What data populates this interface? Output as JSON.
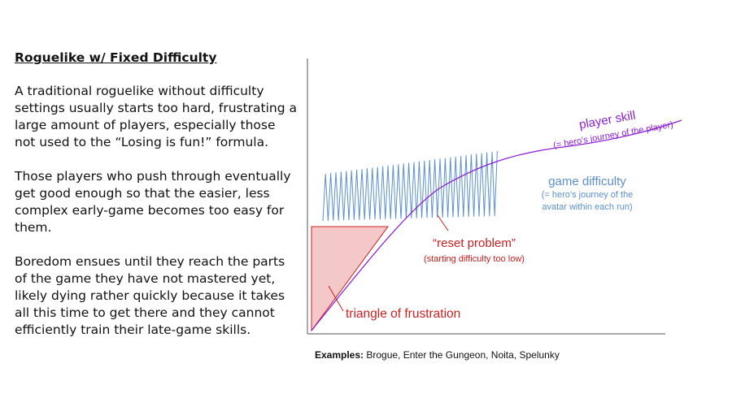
{
  "slide": {
    "title": "Roguelike w/ Fixed Difficulty",
    "paragraphs": [
      "A traditional roguelike without difficulty settings usually starts too hard, frustrating a large amount of players, especially those not used to the “Losing is fun!” formula.",
      "Those players who push through eventually get good enough so that the easier, less complex early-game becomes too easy for them.",
      "Boredom ensues until they reach the parts of the game they have not mastered yet, likely dying rather quickly because it takes all this time to get there and they cannot efficiently train their late-game skills."
    ]
  },
  "diagram": {
    "player_skill_label": "player skill",
    "player_skill_sub": "(= hero’s journey of the player)",
    "game_difficulty_label": "game difficulty",
    "game_difficulty_sub1": "(= hero’s journey of the",
    "game_difficulty_sub2": "avatar within each run)",
    "reset_label": "“reset problem”",
    "reset_sub": "(starting difficulty too low)",
    "triangle_label": "triangle of frustration",
    "colors": {
      "player_skill": "#8a1fd6",
      "game_difficulty": "#5b8fd1",
      "red": "#cc1f1f",
      "triangle_fill": "#f4c7c9",
      "axis": "#555555"
    }
  },
  "examples": {
    "label": "Examples:",
    "text": " Brogue, Enter the Gungeon, Noita, Spelunky"
  }
}
